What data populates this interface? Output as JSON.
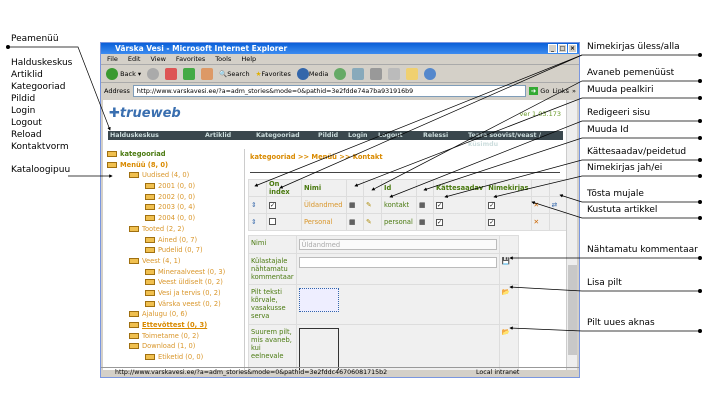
{
  "window": {
    "title": "Värska Vesi - Microsoft Internet Explorer",
    "menu": [
      "File",
      "Edit",
      "View",
      "Favorites",
      "Tools",
      "Help"
    ],
    "toolbar": {
      "back": "Back",
      "search": "Search",
      "favorites": "Favorites",
      "media": "Media"
    },
    "address": {
      "label": "Address",
      "url": "http://www.varskavesi.ee/?a=adm_stories&mode=0&pathid=3e2fdde74a7ba931916b9",
      "go": "Go",
      "links": "Links"
    },
    "status": {
      "url": "http://www.varskavesi.ee/?a=adm_stories&mode=0&pathid=3e2fddc46706081715b2",
      "zone": "Local intranet"
    }
  },
  "app": {
    "logo": "trueweb",
    "version": "ver 1.03.173",
    "nav": [
      "Halduskeskus",
      "Artiklid",
      "Kategooriad",
      "Pildid",
      "Login",
      "Logout",
      "Relessi",
      "Teata soovist/veast / küsimdu"
    ],
    "tree": [
      {
        "label": "kategooriad",
        "level": 0
      },
      {
        "label": "Menüü (8, 0)",
        "level": 0
      },
      {
        "label": "Uudised (4, 0)",
        "level": 1
      },
      {
        "label": "2001 (0, 0)",
        "level": 2
      },
      {
        "label": "2002 (0, 0)",
        "level": 2
      },
      {
        "label": "2003 (0, 4)",
        "level": 2
      },
      {
        "label": "2004 (0, 0)",
        "level": 2
      },
      {
        "label": "Tooted (2, 2)",
        "level": 1
      },
      {
        "label": "Ained (0, 7)",
        "level": 2
      },
      {
        "label": "Pudelid (0, 7)",
        "level": 2
      },
      {
        "label": "Veest (4, 1)",
        "level": 1
      },
      {
        "label": "Mineraalveest (0, 3)",
        "level": 2
      },
      {
        "label": "Veest üldiselt (0, 2)",
        "level": 2
      },
      {
        "label": "Vesi ja tervis (0, 2)",
        "level": 2
      },
      {
        "label": "Värska veest (0, 2)",
        "level": 2
      },
      {
        "label": "Ajalugu (0, 6)",
        "level": 1
      },
      {
        "label": "Ettevõttest (0, 3)",
        "level": 1
      },
      {
        "label": "Toimetame (0, 2)",
        "level": 1
      },
      {
        "label": "Download (1, 0)",
        "level": 1
      },
      {
        "label": "Etiketid (0, 0)",
        "level": 2
      }
    ],
    "breadcrumb": "kategooriad >> Menüü >> Kontakt",
    "list": {
      "headers": [
        "On index",
        "Nimi",
        "Id",
        "Kättesaadav",
        "Nimekirjas"
      ],
      "rows": [
        {
          "on_index": true,
          "name": "Üldandmed",
          "id": "kontakt",
          "available": true,
          "listed": true
        },
        {
          "on_index": false,
          "name": "Personal",
          "id": "personal",
          "available": true,
          "listed": true
        }
      ]
    },
    "form": {
      "name_label": "Nimi",
      "name_value": "Üldandmed",
      "comment_label": "Külastajale nähtamatu kommentaar",
      "image_label": "Pilt teksti kõrvale, vasakusse serva",
      "big_image_label": "Suurem pilt, mis avaneb, kui eelnevale"
    }
  },
  "annotations": {
    "left": [
      "Peamenüü",
      "Halduskeskus",
      "Artiklid",
      "Kategooriad",
      "Pildid",
      "Login",
      "Logout",
      "Reload",
      "Kontaktvorm",
      "Kataloogipuu"
    ],
    "right": [
      "Nimekirjas üless/alla",
      "Avaneb pemenüüst",
      "Muuda pealkiri",
      "Redigeeri sisu",
      "Muuda Id",
      "Kättesaadav/peidetud",
      "Nimekirjas jah/ei",
      "Tõsta mujale",
      "Kustuta artikkel",
      "Nähtamatu kommentaar",
      "Lisa pilt",
      "Pilt uues aknas"
    ]
  }
}
